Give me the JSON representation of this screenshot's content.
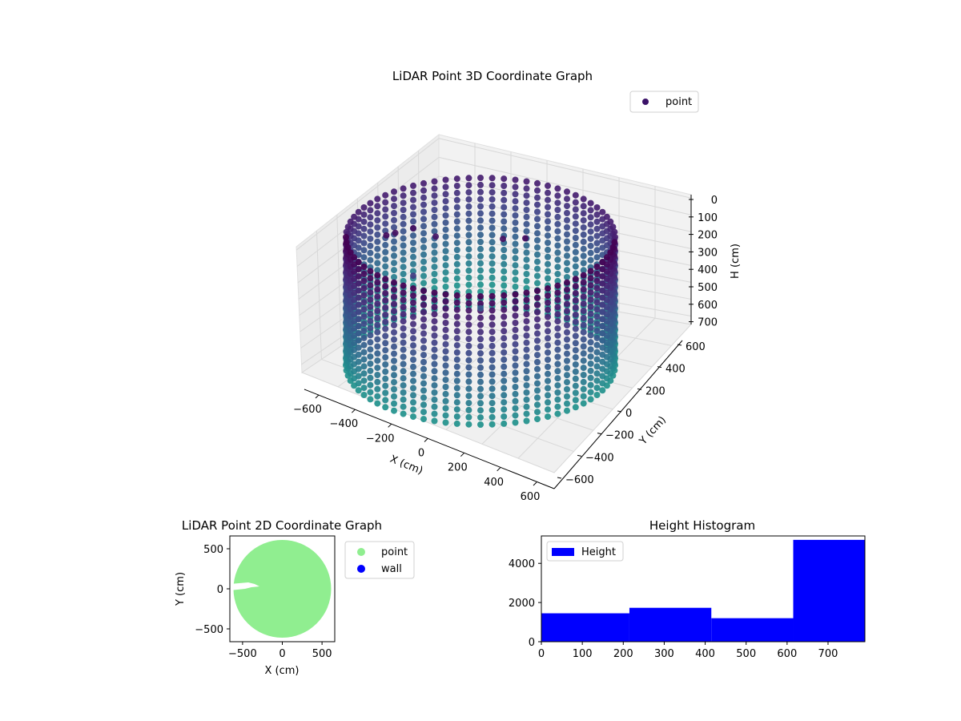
{
  "chart_data": [
    {
      "type": "scatter",
      "projection": "3d",
      "title": "LiDAR Point 3D Coordinate Graph",
      "xlabel": "X (cm)",
      "ylabel": "Y (cm)",
      "zlabel": "H (cm)",
      "xticks": [
        -600,
        -400,
        -200,
        0,
        200,
        400,
        600
      ],
      "yticks": [
        -600,
        -400,
        -200,
        0,
        200,
        400,
        600
      ],
      "zticks": [
        0,
        100,
        200,
        300,
        400,
        500,
        600,
        700
      ],
      "z_inverted": true,
      "xlim": [
        -650,
        650
      ],
      "ylim": [
        -650,
        650
      ],
      "zlim": [
        0,
        750
      ],
      "legend": [
        "point"
      ],
      "legend_loc": "upper right",
      "colormap": "viridis",
      "series": [
        {
          "name": "point",
          "shape": "cylinder wall",
          "center": [
            0,
            0
          ],
          "radius": 600,
          "height_range": [
            0,
            720
          ],
          "samples": [
            {
              "x": -420,
              "y": 150,
              "h": 40
            },
            {
              "x": -380,
              "y": 250,
              "h": 60
            },
            {
              "x": -300,
              "y": 300,
              "h": 50
            },
            {
              "x": -200,
              "y": 250,
              "h": 80
            },
            {
              "x": 100,
              "y": 150,
              "h": 60
            },
            {
              "x": 200,
              "y": 100,
              "h": 40
            },
            {
              "x": -300,
              "y": 100,
              "h": 250
            },
            {
              "x": 0,
              "y": 0,
              "h": 400
            }
          ]
        }
      ]
    },
    {
      "type": "scatter",
      "title": "LiDAR Point 2D Coordinate Graph",
      "xlabel": "X (cm)",
      "ylabel": "Y (cm)",
      "xticks": [
        -500,
        0,
        500
      ],
      "yticks": [
        -500,
        0,
        500
      ],
      "xlim": [
        -660,
        660
      ],
      "ylim": [
        -660,
        660
      ],
      "legend": [
        "point",
        "wall"
      ],
      "legend_loc": "outside upper right",
      "series": [
        {
          "name": "point",
          "color": "#90ee90",
          "shape": "filled disc",
          "center": [
            0,
            0
          ],
          "radius": 610
        },
        {
          "name": "wall",
          "color": "#0000ff",
          "values": []
        }
      ]
    },
    {
      "type": "bar",
      "title": "Height Histogram",
      "xlabel": "",
      "ylabel": "",
      "xticks": [
        0,
        100,
        200,
        300,
        400,
        500,
        600,
        700
      ],
      "yticks": [
        0,
        2000,
        4000
      ],
      "xlim": [
        0,
        790
      ],
      "ylim": [
        0,
        5400
      ],
      "legend": [
        "Height"
      ],
      "legend_loc": "upper left",
      "color": "#0000ff",
      "bins": [
        {
          "start": 0,
          "end": 215,
          "value": 1450
        },
        {
          "start": 215,
          "end": 415,
          "value": 1730
        },
        {
          "start": 415,
          "end": 615,
          "value": 1200
        },
        {
          "start": 615,
          "end": 790,
          "value": 5200
        }
      ]
    }
  ]
}
